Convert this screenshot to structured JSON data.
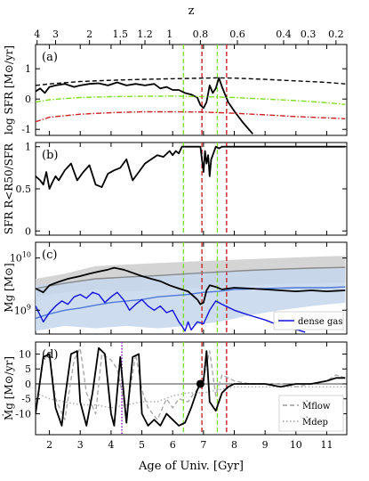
{
  "chart_data": [
    {
      "type": "line",
      "panel_label": "(a)",
      "ylabel": "log SFR [M⊙/yr]",
      "ylim": [
        -1.2,
        1.8
      ],
      "yticks": [
        1,
        0,
        -1
      ],
      "top_axis": {
        "label": "z",
        "ticks": [
          {
            "label": "4",
            "age": 1.6
          },
          {
            "label": "3",
            "age": 2.2
          },
          {
            "label": "2",
            "age": 3.3
          },
          {
            "label": "1.5",
            "age": 4.3
          },
          {
            "label": "1.2",
            "age": 5.1
          },
          {
            "label": "1",
            "age": 5.9
          },
          {
            "label": "0.8",
            "age": 6.9
          },
          {
            "label": "0.6",
            "age": 8.1
          },
          {
            "label": "0.4",
            "age": 9.6
          },
          {
            "label": "0.3",
            "age": 10.4
          },
          {
            "label": "0.2",
            "age": 11.3
          }
        ]
      },
      "series": [
        {
          "style": "solid",
          "color": "#000000",
          "x": [
            1.55,
            1.7,
            1.85,
            2.0,
            2.2,
            2.5,
            2.8,
            3.0,
            3.3,
            3.6,
            3.9,
            4.2,
            4.5,
            4.8,
            5.1,
            5.4,
            5.6,
            5.8,
            6.0,
            6.2,
            6.4,
            6.6,
            6.8,
            6.9,
            7.0,
            7.1,
            7.2,
            7.3,
            7.4,
            7.5,
            7.6,
            7.8,
            8.0,
            8.3,
            8.6
          ],
          "y": [
            0.25,
            0.35,
            0.2,
            0.4,
            0.45,
            0.5,
            0.4,
            0.45,
            0.5,
            0.52,
            0.45,
            0.55,
            0.45,
            0.5,
            0.45,
            0.5,
            0.35,
            0.4,
            0.3,
            0.3,
            0.2,
            0.15,
            0.05,
            -0.2,
            -0.3,
            -0.1,
            0.45,
            0.2,
            0.35,
            0.7,
            0.4,
            -0.1,
            -0.4,
            -0.8,
            -1.15
          ]
        },
        {
          "style": "dashed",
          "color": "#000000",
          "x": [
            1.55,
            2.0,
            3.0,
            4.0,
            5.0,
            6.0,
            7.0,
            7.5,
            8.0,
            9.0,
            10.0,
            11.0,
            11.6
          ],
          "y": [
            0.45,
            0.5,
            0.58,
            0.62,
            0.65,
            0.67,
            0.69,
            0.7,
            0.69,
            0.65,
            0.6,
            0.55,
            0.5
          ]
        },
        {
          "style": "dashdot",
          "color": "#7fdd22",
          "x": [
            1.55,
            2.0,
            3.0,
            4.0,
            5.0,
            6.0,
            7.0,
            8.0,
            9.0,
            10.0,
            11.0,
            11.6
          ],
          "y": [
            -0.1,
            -0.02,
            0.05,
            0.08,
            0.09,
            0.1,
            0.08,
            0.05,
            0.0,
            -0.05,
            -0.12,
            -0.18
          ]
        },
        {
          "style": "dashdot",
          "color": "#cc2222",
          "x": [
            1.55,
            2.0,
            3.0,
            4.0,
            5.0,
            6.0,
            7.0,
            8.0,
            9.0,
            10.0,
            11.0,
            11.6
          ],
          "y": [
            -0.75,
            -0.6,
            -0.5,
            -0.45,
            -0.42,
            -0.42,
            -0.43,
            -0.47,
            -0.52,
            -0.58,
            -0.62,
            -0.65
          ]
        }
      ]
    },
    {
      "type": "line",
      "panel_label": "(b)",
      "ylabel": "SFR R<R50/SFR",
      "ylim": [
        -0.05,
        1.05
      ],
      "yticks": [
        1.0,
        0.5,
        0.0
      ],
      "series": [
        {
          "style": "solid",
          "color": "#000000",
          "x": [
            1.55,
            1.7,
            1.8,
            1.9,
            2.0,
            2.1,
            2.2,
            2.3,
            2.5,
            2.7,
            2.9,
            3.1,
            3.3,
            3.5,
            3.7,
            3.9,
            4.1,
            4.3,
            4.5,
            4.7,
            4.9,
            5.1,
            5.3,
            5.5,
            5.7,
            5.9,
            6.0,
            6.1,
            6.2,
            6.3,
            6.5,
            6.7,
            6.8,
            6.9,
            6.95,
            7.0,
            7.05,
            7.1,
            7.15,
            7.2,
            7.25,
            7.3,
            7.4,
            7.5,
            7.6,
            7.8,
            8.0,
            9.0,
            10.0,
            11.6
          ],
          "y": [
            0.65,
            0.6,
            0.55,
            0.7,
            0.5,
            0.58,
            0.65,
            0.6,
            0.72,
            0.8,
            0.6,
            0.7,
            0.78,
            0.55,
            0.52,
            0.68,
            0.72,
            0.75,
            0.85,
            0.6,
            0.7,
            0.8,
            0.85,
            0.9,
            0.88,
            0.95,
            0.9,
            0.95,
            0.92,
            1.0,
            1.0,
            1.0,
            1.0,
            1.0,
            0.85,
            0.7,
            0.95,
            0.8,
            0.9,
            0.65,
            0.85,
            0.9,
            1.0,
            0.98,
            1.0,
            1.0,
            1.0,
            1.0,
            1.0,
            1.0
          ]
        }
      ]
    },
    {
      "type": "line",
      "panel_label": "(c)",
      "ylabel": "Mg [M⊙]",
      "yscale": "log",
      "ylim": [
        350000000.0,
        20000000000.0
      ],
      "yticks": [
        {
          "value": 10000000000.0,
          "label": "10^10"
        },
        {
          "value": 1000000000.0,
          "label": "10^9"
        }
      ],
      "legend": {
        "entries": [
          "dense gas"
        ],
        "placement": "lower-right"
      },
      "series": [
        {
          "style": "band",
          "color": "#cccccc",
          "x": [
            1.55,
            2.5,
            3.5,
            4.5,
            5.5,
            6.5,
            7.5,
            8.5,
            9.5,
            10.5,
            11.6
          ],
          "y_lo": [
            1800000000.0,
            2200000000.0,
            2500000000.0,
            2300000000.0,
            2400000000.0,
            2600000000.0,
            2800000000.0,
            3000000000.0,
            3200000000.0,
            3300000000.0,
            3400000000.0
          ],
          "y_hi": [
            4000000000.0,
            5000000000.0,
            7000000000.0,
            7500000000.0,
            8000000000.0,
            8500000000.0,
            9000000000.0,
            9500000000.0,
            10000000000.0,
            10500000000.0,
            11000000000.0
          ]
        },
        {
          "style": "solid",
          "color": "#888888",
          "x": [
            1.55,
            2.5,
            3.5,
            4.5,
            5.5,
            6.5,
            7.5,
            8.5,
            9.5,
            10.5,
            11.6
          ],
          "y": [
            2600000000.0,
            3300000000.0,
            4000000000.0,
            4300000000.0,
            4600000000.0,
            5000000000.0,
            5400000000.0,
            5800000000.0,
            6100000000.0,
            6400000000.0,
            6600000000.0
          ]
        },
        {
          "style": "band",
          "color": "#c6d6ec",
          "x": [
            1.55,
            2.5,
            3.5,
            4.5,
            5.5,
            6.5,
            7.5,
            8.5,
            9.5,
            10.5,
            11.6
          ],
          "y_lo": [
            400000000.0,
            500000000.0,
            450000000.0,
            500000000.0,
            450000000.0,
            500000000.0,
            600000000.0,
            800000000.0,
            1000000000.0,
            1200000000.0,
            1400000000.0
          ],
          "y_hi": [
            3000000000.0,
            3500000000.0,
            4000000000.0,
            4500000000.0,
            4800000000.0,
            5200000000.0,
            5600000000.0,
            6000000000.0,
            6300000000.0,
            6600000000.0,
            6800000000.0
          ]
        },
        {
          "style": "solid",
          "color": "#4d79d9",
          "x": [
            1.55,
            2.0,
            2.5,
            3.0,
            3.5,
            4.0,
            4.5,
            5.0,
            5.5,
            6.0,
            6.5,
            7.0,
            7.5,
            8.0,
            9.0,
            10.0,
            11.0,
            11.6
          ],
          "y": [
            700000000.0,
            850000000.0,
            1000000000.0,
            1100000000.0,
            1250000000.0,
            1400000000.0,
            1500000000.0,
            1600000000.0,
            1800000000.0,
            1900000000.0,
            2000000000.0,
            2200000000.0,
            2300000000.0,
            2500000000.0,
            2600000000.0,
            2700000000.0,
            2700000000.0,
            2800000000.0
          ]
        },
        {
          "style": "solid",
          "color": "#000000",
          "x": [
            1.55,
            1.8,
            2.0,
            2.3,
            2.6,
            3.0,
            3.3,
            3.6,
            3.9,
            4.1,
            4.4,
            4.7,
            5.0,
            5.3,
            5.6,
            5.9,
            6.2,
            6.5,
            6.8,
            6.9,
            7.0,
            7.1,
            7.2,
            7.4,
            7.6,
            8.0,
            8.5,
            9.0,
            9.5,
            10.0,
            10.5,
            11.0,
            11.6
          ],
          "y": [
            2600000000.0,
            2200000000.0,
            3000000000.0,
            3500000000.0,
            4000000000.0,
            4500000000.0,
            5000000000.0,
            5500000000.0,
            6000000000.0,
            6500000000.0,
            6000000000.0,
            5200000000.0,
            4500000000.0,
            4000000000.0,
            3600000000.0,
            3000000000.0,
            2600000000.0,
            2300000000.0,
            1600000000.0,
            1300000000.0,
            1400000000.0,
            2400000000.0,
            3000000000.0,
            2800000000.0,
            2500000000.0,
            2700000000.0,
            2600000000.0,
            2500000000.0,
            2400000000.0,
            2300000000.0,
            2400000000.0,
            2300000000.0,
            2400000000.0
          ]
        },
        {
          "name": "dense gas",
          "style": "solid",
          "color": "#1111dd",
          "x": [
            1.55,
            1.8,
            2.0,
            2.2,
            2.4,
            2.6,
            2.8,
            3.0,
            3.2,
            3.4,
            3.6,
            3.8,
            4.0,
            4.2,
            4.4,
            4.6,
            4.8,
            5.0,
            5.2,
            5.4,
            5.6,
            5.8,
            6.0,
            6.2,
            6.3,
            6.4,
            6.5,
            6.6,
            6.8,
            7.0,
            7.2,
            7.4,
            7.6,
            8.0,
            8.5,
            9.0,
            9.5,
            10.0,
            10.3
          ],
          "y": [
            1200000000.0,
            600000000.0,
            900000000.0,
            1200000000.0,
            1500000000.0,
            1300000000.0,
            1800000000.0,
            2000000000.0,
            1700000000.0,
            2200000000.0,
            2000000000.0,
            1400000000.0,
            1800000000.0,
            2200000000.0,
            1600000000.0,
            1000000000.0,
            1300000000.0,
            1600000000.0,
            1200000000.0,
            1000000000.0,
            1200000000.0,
            900000000.0,
            1000000000.0,
            600000000.0,
            500000000.0,
            400000000.0,
            600000000.0,
            420000000.0,
            600000000.0,
            550000000.0,
            1000000000.0,
            1500000000.0,
            1300000000.0,
            1000000000.0,
            800000000.0,
            650000000.0,
            500000000.0,
            430000000.0,
            380000000.0
          ]
        }
      ]
    },
    {
      "type": "line",
      "panel_label": "(d)",
      "ylabel": "Ṁg [M⊙/yr]",
      "xlabel": "Age of Univ. [Gyr]",
      "xlim": [
        1.55,
        11.65
      ],
      "xticks": [
        2,
        3,
        4,
        5,
        6,
        7,
        8,
        9,
        10,
        11
      ],
      "ylim": [
        -17,
        14
      ],
      "yticks": [
        10,
        5,
        0,
        -5,
        -10
      ],
      "legend": {
        "entries": [
          "Ṁflow",
          "Ṁdep"
        ],
        "placement": "lower-right"
      },
      "marker": {
        "x": 6.9,
        "y": 0
      },
      "series": [
        {
          "name": "Ṁflow",
          "style": "dashed",
          "color": "#aaaaaa",
          "x": [
            1.55,
            1.8,
            2.0,
            2.2,
            2.5,
            2.8,
            3.0,
            3.2,
            3.5,
            3.7,
            4.0,
            4.2,
            4.5,
            4.8,
            5.0,
            5.2,
            5.5,
            5.8,
            6.0,
            6.2,
            6.5,
            6.7,
            6.9,
            7.0,
            7.2,
            7.4,
            7.6,
            8.0,
            8.5,
            9.0,
            9.5,
            10.0,
            10.5,
            11.0,
            11.3,
            11.6
          ],
          "y": [
            -10,
            8,
            10,
            -5,
            -12,
            8,
            12,
            -3,
            -10,
            10,
            8,
            5,
            -10,
            10,
            -2,
            -8,
            -12,
            -5,
            -8,
            -5,
            -6,
            -3,
            -1,
            2,
            11,
            -4,
            3,
            1,
            0,
            0,
            0,
            -1,
            0,
            1,
            3,
            2
          ]
        },
        {
          "name": "Ṁdep",
          "style": "dotted",
          "color": "#aaaaaa",
          "x": [
            1.55,
            2.0,
            2.5,
            3.0,
            3.5,
            4.0,
            4.5,
            5.0,
            5.5,
            6.0,
            6.5,
            7.0,
            7.5,
            8.0,
            8.5,
            9.0,
            9.5,
            10.0,
            10.5,
            11.0,
            11.6
          ],
          "y": [
            -3,
            -5,
            -6,
            -7,
            -7,
            -8,
            -7,
            -6,
            -6,
            -4,
            -3,
            -3,
            -2,
            -1,
            -1,
            -1,
            -1,
            -1,
            -1,
            -1,
            -1
          ]
        },
        {
          "style": "solid",
          "color": "#000000",
          "x": [
            1.55,
            1.8,
            2.0,
            2.2,
            2.4,
            2.5,
            2.7,
            2.9,
            3.0,
            3.2,
            3.4,
            3.6,
            3.8,
            4.0,
            4.1,
            4.3,
            4.5,
            4.7,
            4.9,
            5.0,
            5.2,
            5.4,
            5.6,
            5.8,
            6.0,
            6.2,
            6.4,
            6.6,
            6.8,
            6.9,
            7.0,
            7.1,
            7.2,
            7.4,
            7.6,
            7.8,
            8.0,
            8.5,
            9.0,
            9.5,
            10.0,
            10.5,
            11.0,
            11.3,
            11.6
          ],
          "y": [
            -10,
            9,
            10,
            -8,
            -14,
            -5,
            10,
            11,
            -6,
            -14,
            -3,
            12,
            10,
            -10,
            -14,
            9,
            -13,
            9,
            10,
            -10,
            -14,
            -12,
            -14,
            -10,
            -12,
            -14,
            -13,
            -8,
            -2,
            0,
            1,
            11,
            -6,
            -9,
            -3,
            -1,
            0,
            0,
            0,
            -1,
            0,
            0,
            1,
            2,
            2
          ]
        }
      ]
    }
  ],
  "vlines": [
    {
      "x": 6.35,
      "color": "#7fdd22"
    },
    {
      "x": 6.95,
      "color": "#cc2222"
    },
    {
      "x": 7.45,
      "color": "#7fdd22"
    },
    {
      "x": 7.75,
      "color": "#cc2222"
    }
  ],
  "vline_panel_d": {
    "x": 4.35,
    "color": "#9933cc"
  }
}
